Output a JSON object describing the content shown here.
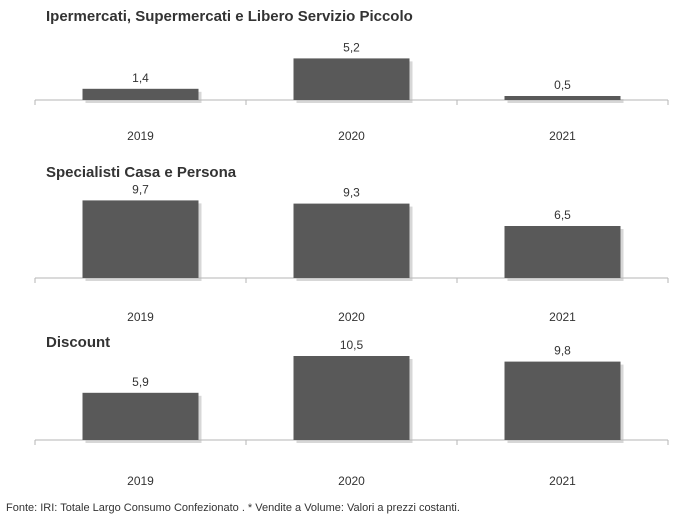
{
  "chart_data": [
    {
      "type": "bar",
      "title": "Ipermercati,  Supermercati e Libero Servizio Piccolo",
      "categories": [
        "2019",
        "2020",
        "2021"
      ],
      "values": [
        1.4,
        5.2,
        0.5
      ],
      "value_labels": [
        "1,4",
        "5,2",
        "0,5"
      ],
      "xlabel": "",
      "ylabel": "",
      "ylim": [
        0,
        11
      ],
      "grid": false,
      "bar_color": "#595959"
    },
    {
      "type": "bar",
      "title": "Specialisti  Casa e Persona",
      "categories": [
        "2019",
        "2020",
        "2021"
      ],
      "values": [
        9.7,
        9.3,
        6.5
      ],
      "value_labels": [
        "9,7",
        "9,3",
        "6,5"
      ],
      "xlabel": "",
      "ylabel": "",
      "ylim": [
        0,
        11
      ],
      "grid": false,
      "bar_color": "#595959"
    },
    {
      "type": "bar",
      "title": "Discount",
      "categories": [
        "2019",
        "2020",
        "2021"
      ],
      "values": [
        5.9,
        10.5,
        9.8
      ],
      "value_labels": [
        "5,9",
        "10,5",
        "9,8"
      ],
      "xlabel": "",
      "ylabel": "",
      "ylim": [
        0,
        11
      ],
      "grid": false,
      "bar_color": "#595959"
    }
  ],
  "footnote": "Fonte: IRI: Totale Largo Consumo Confezionato . * Vendite a Volume: Valori a prezzi costanti."
}
